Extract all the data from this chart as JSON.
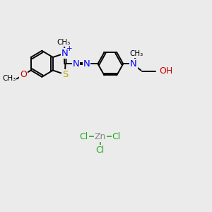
{
  "bg_color": "#ebebeb",
  "bond_color": "#000000",
  "N_color": "#0000ff",
  "S_color": "#bbaa00",
  "O_color": "#cc0000",
  "Zn_color": "#888888",
  "Cl_color": "#22aa22",
  "lw": 1.4,
  "fs": 8.5,
  "xlim": [
    0,
    10
  ],
  "ylim": [
    0,
    10
  ]
}
